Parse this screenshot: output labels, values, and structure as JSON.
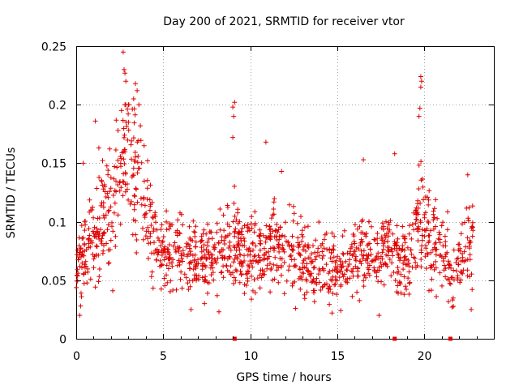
{
  "chart_data": {
    "type": "scatter",
    "title": "Day 200 of 2021, SRMTID for receiver vtor",
    "xlabel": "GPS time / hours",
    "ylabel": "SRMTID / TECUs",
    "xlim": [
      0,
      24
    ],
    "ylim": [
      0,
      0.25
    ],
    "xticks": [
      0,
      5,
      10,
      15,
      20
    ],
    "yticks": [
      0,
      0.05,
      0.1,
      0.15,
      0.2,
      0.25
    ],
    "xtick_labels": [
      "0",
      "5",
      "10",
      "15",
      "20"
    ],
    "ytick_labels": [
      "0",
      "0.05",
      "0.1",
      "0.15",
      "0.2",
      "0.25"
    ],
    "grid": true,
    "marker": "+",
    "color": "#e00000",
    "zero_markers_x": [
      9.1,
      18.3,
      21.5
    ],
    "trend": [
      [
        0.0,
        0.06
      ],
      [
        0.5,
        0.075
      ],
      [
        1.0,
        0.09
      ],
      [
        1.5,
        0.1
      ],
      [
        2.0,
        0.11
      ],
      [
        2.5,
        0.13
      ],
      [
        2.8,
        0.16
      ],
      [
        3.2,
        0.145
      ],
      [
        3.7,
        0.12
      ],
      [
        4.2,
        0.095
      ],
      [
        4.7,
        0.075
      ],
      [
        5.5,
        0.07
      ],
      [
        6.5,
        0.068
      ],
      [
        7.5,
        0.065
      ],
      [
        8.5,
        0.075
      ],
      [
        9.1,
        0.09
      ],
      [
        9.6,
        0.07
      ],
      [
        10.5,
        0.075
      ],
      [
        11.5,
        0.08
      ],
      [
        12.5,
        0.075
      ],
      [
        13.5,
        0.065
      ],
      [
        14.5,
        0.06
      ],
      [
        15.5,
        0.058
      ],
      [
        16.5,
        0.075
      ],
      [
        17.5,
        0.07
      ],
      [
        18.3,
        0.075
      ],
      [
        19.0,
        0.065
      ],
      [
        19.5,
        0.085
      ],
      [
        19.9,
        0.11
      ],
      [
        20.5,
        0.08
      ],
      [
        21.2,
        0.075
      ],
      [
        21.7,
        0.06
      ],
      [
        22.3,
        0.08
      ],
      [
        22.8,
        0.08
      ]
    ],
    "peaks": [
      {
        "x": 2.7,
        "y": 0.245
      },
      {
        "x": 2.75,
        "y": 0.23
      },
      {
        "x": 2.8,
        "y": 0.227
      },
      {
        "x": 2.85,
        "y": 0.22
      },
      {
        "x": 3.4,
        "y": 0.218
      },
      {
        "x": 3.5,
        "y": 0.212
      },
      {
        "x": 3.3,
        "y": 0.205
      },
      {
        "x": 3.6,
        "y": 0.2
      },
      {
        "x": 1.1,
        "y": 0.186
      },
      {
        "x": 2.6,
        "y": 0.195
      },
      {
        "x": 9.1,
        "y": 0.202
      },
      {
        "x": 9.0,
        "y": 0.198
      },
      {
        "x": 9.05,
        "y": 0.19
      },
      {
        "x": 9.0,
        "y": 0.172
      },
      {
        "x": 19.8,
        "y": 0.224
      },
      {
        "x": 19.85,
        "y": 0.22
      },
      {
        "x": 19.8,
        "y": 0.215
      },
      {
        "x": 19.75,
        "y": 0.197
      },
      {
        "x": 19.7,
        "y": 0.19
      },
      {
        "x": 10.9,
        "y": 0.168
      },
      {
        "x": 18.3,
        "y": 0.158
      },
      {
        "x": 11.8,
        "y": 0.143
      },
      {
        "x": 16.5,
        "y": 0.153
      },
      {
        "x": 22.5,
        "y": 0.14
      },
      {
        "x": 0.4,
        "y": 0.15
      },
      {
        "x": 1.3,
        "y": 0.163
      },
      {
        "x": 4.1,
        "y": 0.152
      },
      {
        "x": 3.0,
        "y": 0.185
      },
      {
        "x": 3.9,
        "y": 0.165
      },
      {
        "x": 2.4,
        "y": 0.178
      }
    ],
    "lows": [
      {
        "x": 0.2,
        "y": 0.02
      },
      {
        "x": 0.25,
        "y": 0.028
      },
      {
        "x": 17.4,
        "y": 0.02
      },
      {
        "x": 14.7,
        "y": 0.022
      },
      {
        "x": 22.7,
        "y": 0.025
      },
      {
        "x": 8.2,
        "y": 0.023
      },
      {
        "x": 6.6,
        "y": 0.025
      },
      {
        "x": 12.6,
        "y": 0.026
      },
      {
        "x": 21.6,
        "y": 0.027
      },
      {
        "x": 15.2,
        "y": 0.024
      }
    ]
  }
}
